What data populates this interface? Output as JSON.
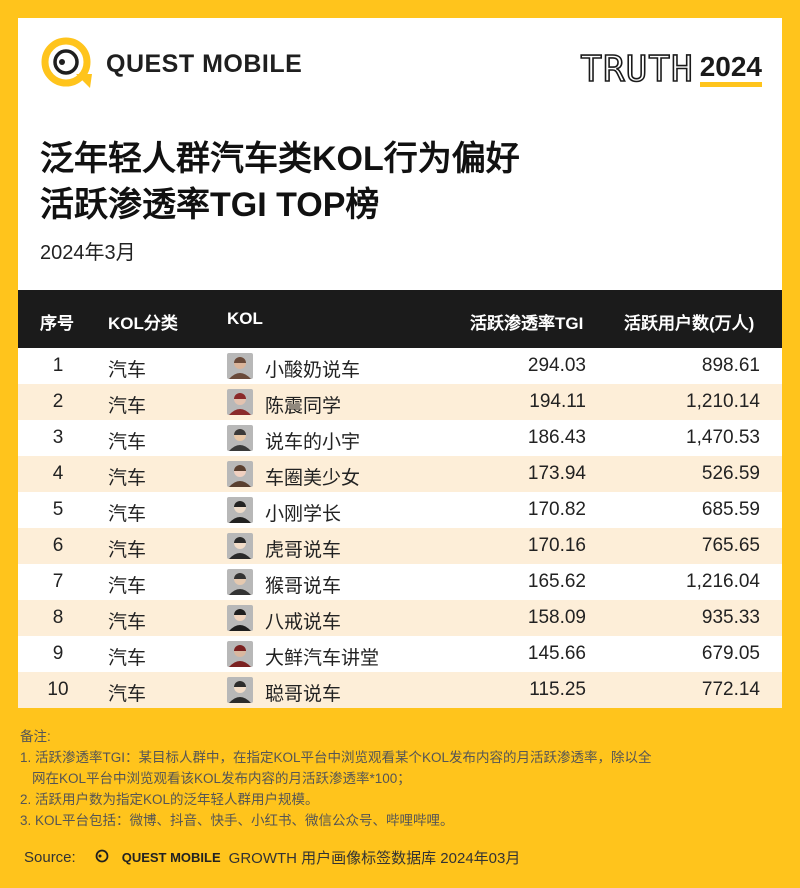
{
  "brand": {
    "name": "QUEST MOBILE",
    "truth_word": "TRUTH",
    "truth_year": "2024"
  },
  "title": {
    "line1": "泛年轻人群汽车类KOL行为偏好",
    "line2": "活跃渗透率TGI TOP榜",
    "date": "2024年3月"
  },
  "table": {
    "headers": {
      "rank": "序号",
      "category": "KOL分类",
      "kol": "KOL",
      "tgi": "活跃渗透率TGI",
      "users": "活跃用户数(万人)"
    },
    "rows": [
      {
        "rank": "1",
        "category": "汽车",
        "kol": "小酸奶说车",
        "tgi": "294.03",
        "users": "898.61"
      },
      {
        "rank": "2",
        "category": "汽车",
        "kol": "陈震同学",
        "tgi": "194.11",
        "users": "1,210.14"
      },
      {
        "rank": "3",
        "category": "汽车",
        "kol": "说车的小宇",
        "tgi": "186.43",
        "users": "1,470.53"
      },
      {
        "rank": "4",
        "category": "汽车",
        "kol": "车圈美少女",
        "tgi": "173.94",
        "users": "526.59"
      },
      {
        "rank": "5",
        "category": "汽车",
        "kol": "小刚学长",
        "tgi": "170.82",
        "users": "685.59"
      },
      {
        "rank": "6",
        "category": "汽车",
        "kol": "虎哥说车",
        "tgi": "170.16",
        "users": "765.65"
      },
      {
        "rank": "7",
        "category": "汽车",
        "kol": "猴哥说车",
        "tgi": "165.62",
        "users": "1,216.04"
      },
      {
        "rank": "8",
        "category": "汽车",
        "kol": "八戒说车",
        "tgi": "158.09",
        "users": "935.33"
      },
      {
        "rank": "9",
        "category": "汽车",
        "kol": "大鲜汽车讲堂",
        "tgi": "145.66",
        "users": "679.05"
      },
      {
        "rank": "10",
        "category": "汽车",
        "kol": "聪哥说车",
        "tgi": "115.25",
        "users": "772.14"
      }
    ]
  },
  "notes": {
    "heading": "备注:",
    "line1": "1. 活跃渗透率TGI：某目标人群中，在指定KOL平台中浏览观看某个KOL发布内容的月活跃渗透率，除以全",
    "line1b": "网在KOL平台中浏览观看该KOL发布内容的月活跃渗透率*100；",
    "line2": "2. 活跃用户数为指定KOL的泛年轻人群用户规模。",
    "line3": "3. KOL平台包括：微博、抖音、快手、小红书、微信公众号、哔哩哔哩。"
  },
  "source": {
    "label": "Source:",
    "logo_text": "QUEST MOBILE",
    "text": "GROWTH 用户画像标签数据库 2024年03月"
  },
  "colors": {
    "accent": "#ffc41c",
    "header_bg": "#1b1b1b",
    "stripe": "#fdeed8"
  }
}
